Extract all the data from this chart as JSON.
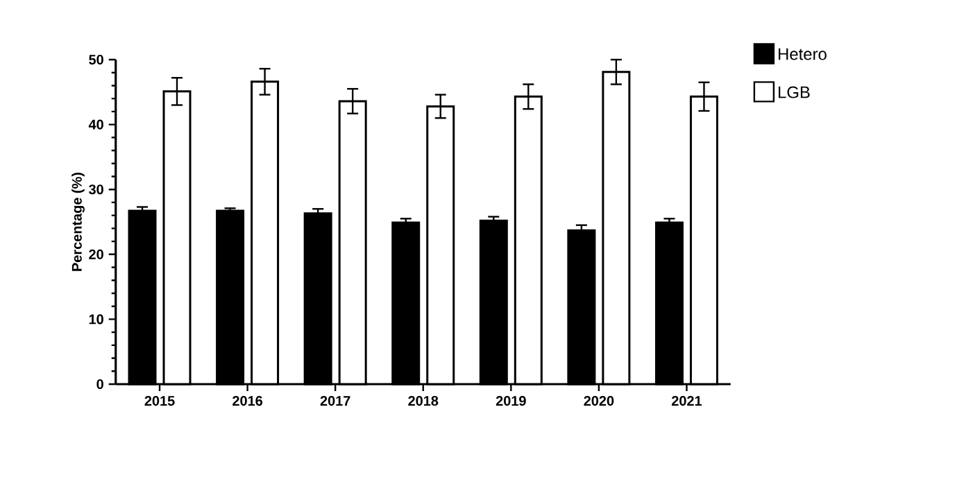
{
  "chart_data": {
    "type": "bar",
    "ylabel": "Percentage (%)",
    "categories": [
      "2015",
      "2016",
      "2017",
      "2018",
      "2019",
      "2020",
      "2021"
    ],
    "series": [
      {
        "name": "Hetero",
        "color": "#000000",
        "values": [
          26.7,
          26.7,
          26.3,
          24.9,
          25.2,
          23.7,
          24.9
        ],
        "errors": [
          0.6,
          0.4,
          0.7,
          0.6,
          0.6,
          0.8,
          0.6
        ]
      },
      {
        "name": "LGB",
        "color": "#ffffff",
        "values": [
          45.1,
          46.6,
          43.6,
          42.8,
          44.3,
          48.1,
          44.3
        ],
        "errors": [
          2.1,
          2.0,
          1.9,
          1.8,
          1.9,
          1.9,
          2.2
        ]
      }
    ],
    "ylim": [
      0,
      50
    ],
    "yticks": [
      0,
      10,
      20,
      30,
      40,
      50
    ],
    "legend": "top right",
    "grid": false
  }
}
